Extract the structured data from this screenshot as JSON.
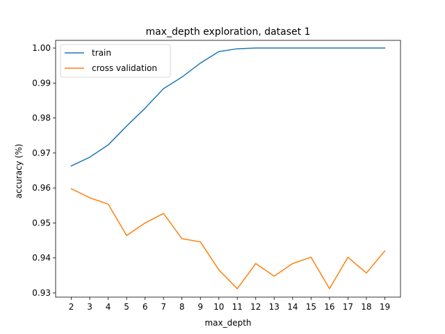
{
  "chart_data": {
    "type": "line",
    "title": "max_depth exploration, dataset 1",
    "xlabel": "max_depth",
    "ylabel": "accuracy (%)",
    "x": [
      2,
      3,
      4,
      5,
      6,
      7,
      8,
      9,
      10,
      11,
      12,
      13,
      14,
      15,
      16,
      17,
      18,
      19
    ],
    "xticks": [
      "2",
      "3",
      "4",
      "5",
      "6",
      "7",
      "8",
      "9",
      "10",
      "11",
      "12",
      "13",
      "14",
      "15",
      "16",
      "17",
      "18",
      "19"
    ],
    "yticks": [
      "0.93",
      "0.94",
      "0.95",
      "0.96",
      "0.97",
      "0.98",
      "0.99",
      "1.00"
    ],
    "ylim": [
      0.9288,
      1.0022
    ],
    "xlim": [
      1.15,
      19.85
    ],
    "grid": false,
    "legend_position": "upper-left",
    "series": [
      {
        "name": "train",
        "color": "#1f77b4",
        "values": [
          0.9663,
          0.9688,
          0.9723,
          0.9777,
          0.9828,
          0.9884,
          0.9917,
          0.9957,
          0.999,
          0.9998,
          1.0,
          1.0,
          1.0,
          1.0,
          1.0,
          1.0,
          1.0,
          1.0
        ]
      },
      {
        "name": "cross validation",
        "color": "#ff7f0e",
        "values": [
          0.9598,
          0.9572,
          0.9554,
          0.9464,
          0.95,
          0.9527,
          0.9455,
          0.9446,
          0.9366,
          0.9312,
          0.9384,
          0.9348,
          0.9384,
          0.9402,
          0.9312,
          0.9402,
          0.9357,
          0.942
        ]
      }
    ]
  }
}
